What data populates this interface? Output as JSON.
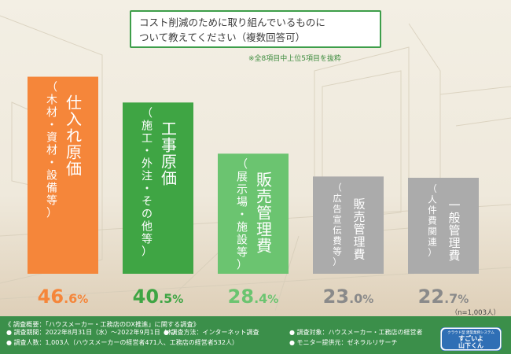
{
  "title": {
    "line1": "コスト削減のために取り組んでいるものに",
    "line2": "ついて教えてください（複数回答可）"
  },
  "note": "※全8項目中上位5項目を抜粋",
  "sample_size": "（n=1,003人）",
  "colors": {
    "orange": "#f5863a",
    "green_dark": "#3fa544",
    "green_light": "#6bc470",
    "gray": "#ababab",
    "footer": "#3b8f4a"
  },
  "chart_data": {
    "type": "bar",
    "categories": [
      "仕入れ原価",
      "工事原価",
      "販売管理費",
      "販売管理費",
      "一般管理費"
    ],
    "subcategories": [
      "（木材・資材・設備等）",
      "（施工・外注・その他等）",
      "（展示場・施設等）",
      "（広告宣伝費等）",
      "（人件費関連）"
    ],
    "values": [
      46.6,
      40.5,
      28.4,
      23.0,
      22.7
    ],
    "value_labels": [
      {
        "int": "46",
        "dec": ".6",
        "unit": "%"
      },
      {
        "int": "40",
        "dec": ".5",
        "unit": "%"
      },
      {
        "int": "28",
        "dec": ".4",
        "unit": "%"
      },
      {
        "int": "23",
        "dec": ".0",
        "unit": "%"
      },
      {
        "int": "22",
        "dec": ".7",
        "unit": "%"
      }
    ],
    "bar_colors": [
      "#f5863a",
      "#3fa544",
      "#6bc470",
      "#ababab",
      "#ababab"
    ],
    "value_colors": [
      "#f5863a",
      "#3fa544",
      "#6bc470",
      "#8a8a8a",
      "#8a8a8a"
    ],
    "ylim": [
      0,
      48
    ]
  },
  "survey": {
    "header": "《 調査概要：「ハウスメーカー・工務店のDX推進」に関する調査》",
    "period": "● 調査期間：2022年8月31日（水）〜2022年9月1日（木）",
    "method": "● 調査方法：インターネット調査",
    "target": "● 調査対象：ハウスメーカー・工務店の経営者",
    "count": "● 調査人数：1,003人（ハウスメーカーの経営者471人、工務店の経営者532人）",
    "monitor": "● モニター提供元：ゼネラルリサーチ"
  },
  "logo": {
    "tagline": "クラウド型 建築業務システム",
    "name_line1": "すごいよ",
    "name_line2": "山下くん"
  }
}
